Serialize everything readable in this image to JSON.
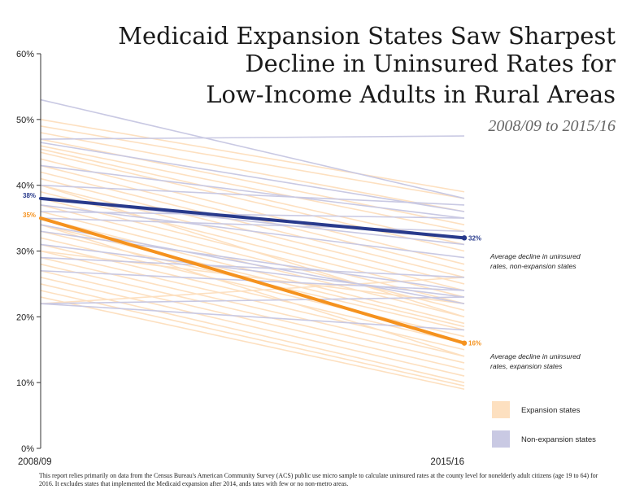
{
  "chart_data": {
    "type": "line",
    "title_lines": [
      "Medicaid Expansion States Saw Sharpest",
      "Decline in Uninsured Rates for",
      "Low-Income Adults in Rural Areas"
    ],
    "subtitle": "2008/09 to 2015/16",
    "categories": [
      "2008/09",
      "2015/16"
    ],
    "ylim": [
      0,
      60
    ],
    "yticks": [
      {
        "value": 0,
        "label": "0%"
      },
      {
        "value": 10,
        "label": "10%"
      },
      {
        "value": 20,
        "label": "20%"
      },
      {
        "value": 30,
        "label": "30%"
      },
      {
        "value": 40,
        "label": "40%"
      },
      {
        "value": 50,
        "label": "50%"
      },
      {
        "value": 60,
        "label": "60%"
      }
    ],
    "grid": false,
    "colors": {
      "expansion_state": "#fde0c0",
      "non_expansion_state": "#c9c9e3",
      "expansion_avg": "#f5921e",
      "non_expansion_avg": "#283a8c",
      "axis": "#333333"
    },
    "expansion_states": [
      [
        50,
        39
      ],
      [
        49,
        38
      ],
      [
        48,
        36
      ],
      [
        47,
        34
      ],
      [
        46,
        33
      ],
      [
        45.5,
        31
      ],
      [
        45,
        30
      ],
      [
        44,
        28
      ],
      [
        43,
        27
      ],
      [
        42,
        26
      ],
      [
        41,
        25
      ],
      [
        40,
        24
      ],
      [
        39,
        23
      ],
      [
        38,
        22
      ],
      [
        37,
        21
      ],
      [
        36,
        20
      ],
      [
        35,
        19
      ],
      [
        34,
        18.5
      ],
      [
        33,
        18
      ],
      [
        32,
        17
      ],
      [
        31,
        16
      ],
      [
        30,
        15
      ],
      [
        29,
        14
      ],
      [
        28,
        13
      ],
      [
        27,
        12
      ],
      [
        26,
        11
      ],
      [
        25,
        10
      ],
      [
        24,
        9.5
      ],
      [
        23,
        9
      ],
      [
        22,
        26
      ],
      [
        34,
        14
      ],
      [
        30,
        22
      ],
      [
        40,
        20
      ]
    ],
    "non_expansion_states": [
      [
        53,
        38
      ],
      [
        47,
        47.5
      ],
      [
        46.5,
        36
      ],
      [
        43,
        35
      ],
      [
        40,
        37
      ],
      [
        38,
        31
      ],
      [
        37,
        29
      ],
      [
        36,
        35
      ],
      [
        35,
        33
      ],
      [
        34,
        22
      ],
      [
        33,
        24
      ],
      [
        31,
        23
      ],
      [
        29,
        26
      ],
      [
        27,
        24
      ],
      [
        22,
        23
      ],
      [
        22,
        18
      ]
    ],
    "averages": [
      {
        "name": "Average decline in uninsured rates, non-expansion states",
        "values": [
          38,
          32
        ]
      },
      {
        "name": "Average decline in uninsured rates, expansion states",
        "values": [
          35,
          16
        ]
      }
    ],
    "data_labels": {
      "non_expansion_start": "38%",
      "non_expansion_end": "32%",
      "expansion_start": "35%",
      "expansion_end": "16%"
    },
    "annotations": {
      "non_expansion": [
        "Average decline in uninsured",
        "rates, non-expansion states"
      ],
      "expansion": [
        "Average decline in uninsured",
        "rates, expansion states"
      ]
    },
    "legend": [
      {
        "label": "Expansion states",
        "color": "#fde0c0"
      },
      {
        "label": "Non-expansion states",
        "color": "#c9c9e3"
      }
    ]
  },
  "footnote": "This report relies primarily on data from the Census Bureau's American Community Survey (ACS) public use micro sample to calculate uninsured rates at the county level for nonelderly adult citizens (age 19 to 64) for 2016. It excludes states that implemented the Medicaid expansion after 2014, ands tates with few or no non-metro areas."
}
